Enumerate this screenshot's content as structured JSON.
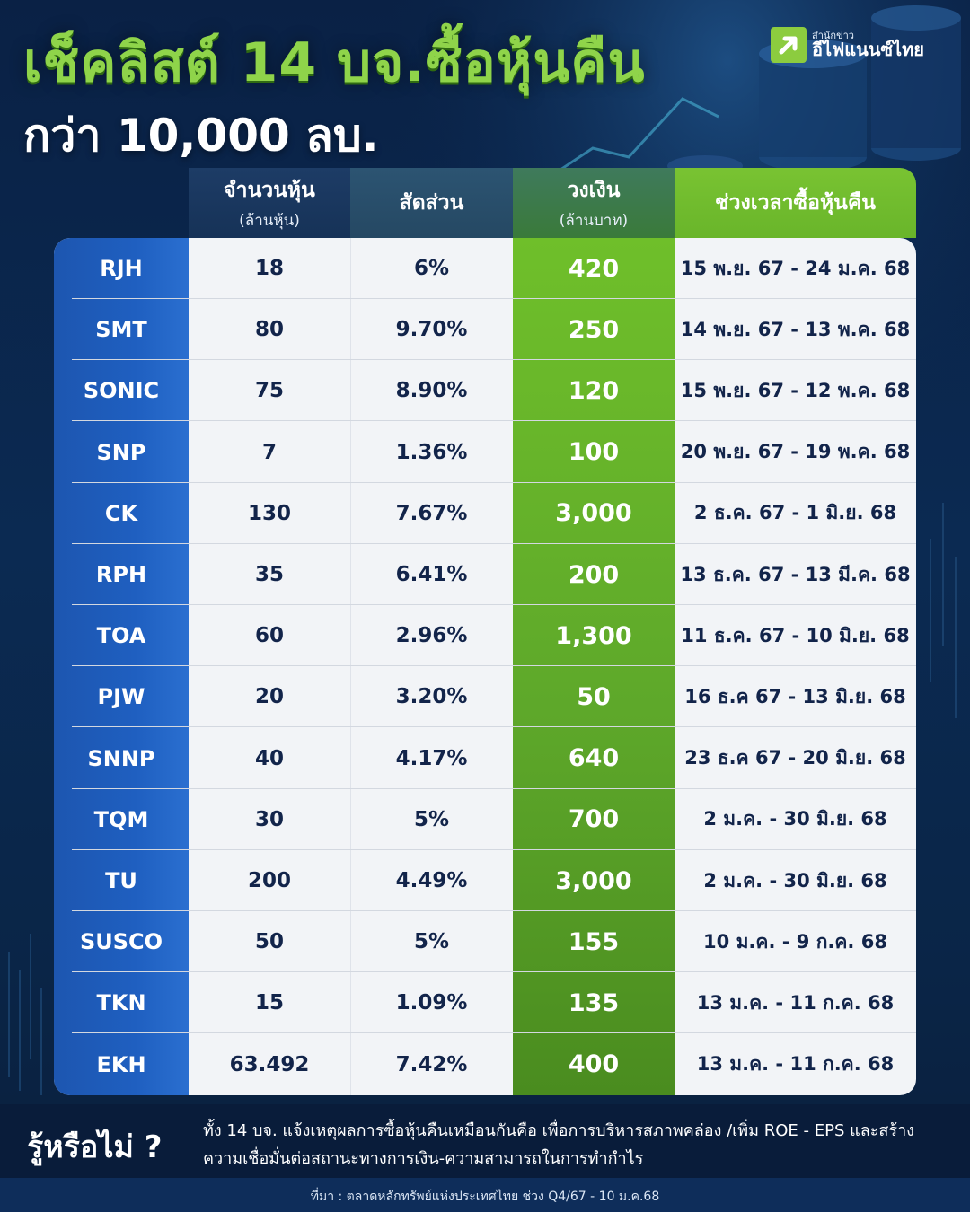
{
  "header": {
    "title_line1": "เช็คลิสต์ 14 บจ.ซื้อหุ้นคืน",
    "title_line2": "กว่า 10,000 ลบ."
  },
  "logo": {
    "small": "สำนักข่าว",
    "big": "อีไฟแนนซ์ไทย",
    "icon": "arrow-up-right-icon",
    "color": "#8ccc3f"
  },
  "table": {
    "columns": [
      {
        "main": "จำนวนหุ้น",
        "sub": "(ล้านหุ้น)"
      },
      {
        "main": "สัดส่วน",
        "sub": ""
      },
      {
        "main": "วงเงิน",
        "sub": "(ล้านบาท)"
      },
      {
        "main": "ช่วงเวลาซื้อหุ้นคืน",
        "sub": ""
      }
    ],
    "rows": [
      {
        "ticker": "RJH",
        "shares": "18",
        "ratio": "6%",
        "amount": "420",
        "period": "15 พ.ย. 67 - 24 ม.ค. 68"
      },
      {
        "ticker": "SMT",
        "shares": "80",
        "ratio": "9.70%",
        "amount": "250",
        "period": "14 พ.ย. 67 - 13 พ.ค. 68"
      },
      {
        "ticker": "SONIC",
        "shares": "75",
        "ratio": "8.90%",
        "amount": "120",
        "period": "15 พ.ย. 67 - 12 พ.ค. 68"
      },
      {
        "ticker": "SNP",
        "shares": "7",
        "ratio": "1.36%",
        "amount": "100",
        "period": "20 พ.ย. 67 - 19 พ.ค. 68"
      },
      {
        "ticker": "CK",
        "shares": "130",
        "ratio": "7.67%",
        "amount": "3,000",
        "period": "2 ธ.ค. 67 - 1 มิ.ย. 68"
      },
      {
        "ticker": "RPH",
        "shares": "35",
        "ratio": "6.41%",
        "amount": "200",
        "period": "13 ธ.ค. 67 - 13 มี.ค. 68"
      },
      {
        "ticker": "TOA",
        "shares": "60",
        "ratio": "2.96%",
        "amount": "1,300",
        "period": "11 ธ.ค. 67 - 10 มิ.ย. 68"
      },
      {
        "ticker": "PJW",
        "shares": "20",
        "ratio": "3.20%",
        "amount": "50",
        "period": "16 ธ.ค 67 - 13 มิ.ย. 68"
      },
      {
        "ticker": "SNNP",
        "shares": "40",
        "ratio": "4.17%",
        "amount": "640",
        "period": "23 ธ.ค 67 - 20 มิ.ย. 68"
      },
      {
        "ticker": "TQM",
        "shares": "30",
        "ratio": "5%",
        "amount": "700",
        "period": "2 ม.ค. - 30 มิ.ย. 68"
      },
      {
        "ticker": "TU",
        "shares": "200",
        "ratio": "4.49%",
        "amount": "3,000",
        "period": "2 ม.ค. - 30 มิ.ย. 68"
      },
      {
        "ticker": "SUSCO",
        "shares": "50",
        "ratio": "5%",
        "amount": "155",
        "period": "10 ม.ค. - 9 ก.ค. 68"
      },
      {
        "ticker": "TKN",
        "shares": "15",
        "ratio": "1.09%",
        "amount": "135",
        "period": "13 ม.ค.  - 11 ก.ค. 68"
      },
      {
        "ticker": "EKH",
        "shares": "63.492",
        "ratio": "7.42%",
        "amount": "400",
        "period": "13 ม.ค. - 11 ก.ค. 68"
      }
    ]
  },
  "footer": {
    "question": "รู้หรือไม่ ?",
    "note": "ทั้ง 14  บจ. แจ้งเหตุผลการซื้อหุ้นคืนเหมือนกันคือ เพื่อการบริหารสภาพคล่อง /เพิ่ม ROE - EPS และสร้างความเชื่อมั่นต่อสถานะทางการเงิน-ความสามารถในการทำกำไร",
    "source": "ที่มา : ตลาดหลักทรัพย์แห่งประเทศไทย ช่วง Q4/67 - 10 ม.ค.68"
  },
  "colors": {
    "background": "#0b2a52",
    "title_green": "#8fd44a",
    "ticker_blue": "#1f5fc0",
    "amount_green": "#5ea82a",
    "cell_text": "#12244a"
  }
}
